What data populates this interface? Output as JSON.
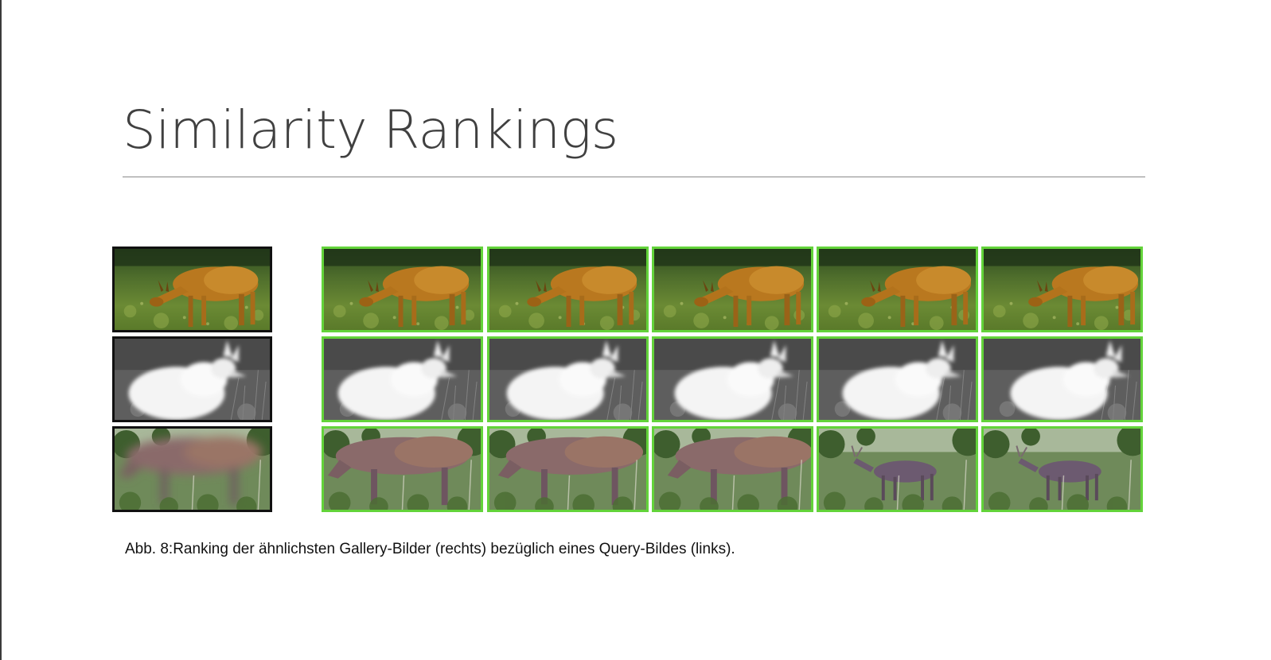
{
  "slide": {
    "title": "Similarity Rankings",
    "caption": "Abb. 8:Ranking der ähnlichsten Gallery-Bilder (rechts) bezüglich eines Query-Bildes (links)."
  },
  "colors": {
    "gallery_border": "#63d33a",
    "query_border": "#111111",
    "title_text": "#404040"
  },
  "rows": [
    {
      "scene": "roe-deer-color",
      "gallery_count": 5
    },
    {
      "scene": "deer-infrared",
      "gallery_count": 5
    },
    {
      "scene": "red-deer-forest",
      "gallery_count": 5
    }
  ]
}
